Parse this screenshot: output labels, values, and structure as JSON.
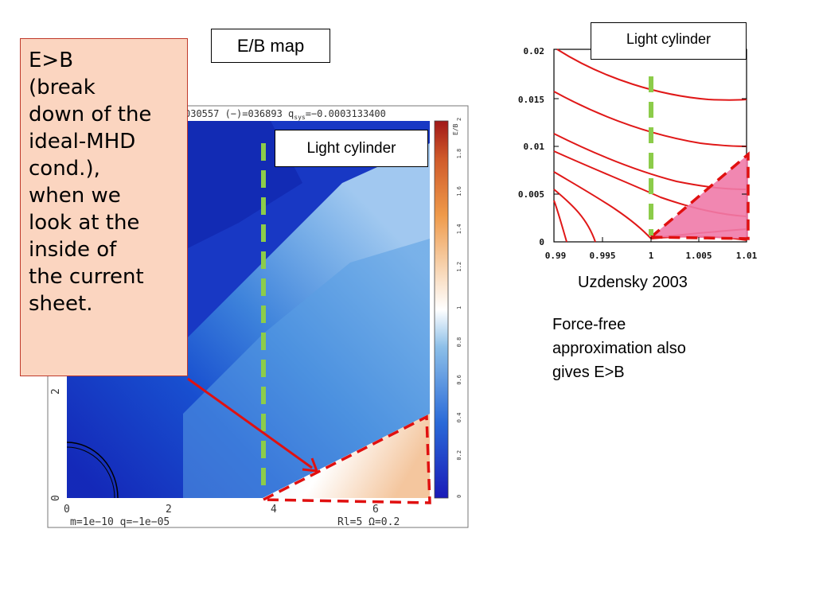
{
  "slide": {
    "title": "E/B map",
    "callout_lines": [
      "E>B",
      "(break",
      "down of the",
      "ideal-MHD",
      "cond.),",
      "when we",
      "look at the",
      "inside of",
      "the current",
      "sheet."
    ],
    "light_cylinder_left": "Light cylinder",
    "light_cylinder_right": "Light cylinder",
    "citation": "Uzdensky 2003",
    "note_lines": [
      "Force-free",
      "approximation also",
      "gives E>B"
    ],
    "colors": {
      "callout_bg": "#fbd5c0",
      "callout_border": "#c0392b",
      "dash_green": "#8ccc4a",
      "dash_red": "#e01010",
      "arrow": "#e01010",
      "region_fill": "#f07aa8"
    }
  },
  "left_plot": {
    "header_text": "030557 (−)=036893  q",
    "header_sub": "sys",
    "header_tail": "=−0.0003133400",
    "footer_left": "m=1e−10   q=−1e−05",
    "footer_right": "Rl=5   Ω=0.2",
    "x_ticks": [
      "0",
      "2",
      "4",
      "6"
    ],
    "y_ticks": [
      "0",
      "2"
    ],
    "colorbar_label": "E/B",
    "colorbar_ticks": [
      "0",
      "0.2",
      "0.4",
      "0.6",
      "0.8",
      "1",
      "1.2",
      "1.4",
      "1.6",
      "1.8",
      "2"
    ]
  },
  "right_plot": {
    "x_ticks": [
      "0.99",
      "0.995",
      "1",
      "1.005",
      "1.01"
    ],
    "y_ticks": [
      "0",
      "0.005",
      "0.01",
      "0.015",
      "0.02"
    ]
  }
}
